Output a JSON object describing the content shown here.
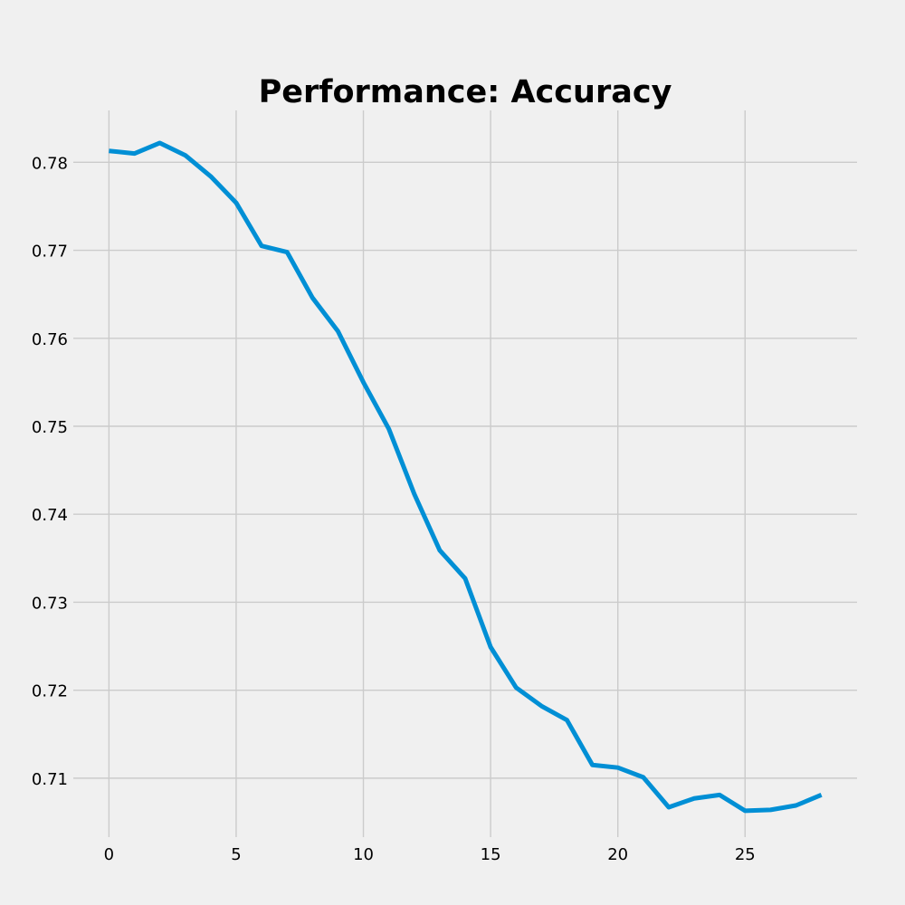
{
  "chart_data": {
    "type": "line",
    "title": "Performance: Accuracy",
    "xlabel": "",
    "ylabel": "",
    "xlim": [
      -1.4,
      29.4
    ],
    "ylim": [
      0.7033,
      0.7859
    ],
    "xticks": [
      0,
      5,
      10,
      15,
      20,
      25
    ],
    "yticks": [
      0.71,
      0.72,
      0.73,
      0.74,
      0.75,
      0.76,
      0.77,
      0.78
    ],
    "grid": true,
    "legend": "none",
    "colors": {
      "background": "#f0f0f0",
      "series": "#008fd5",
      "grid": "#cbcbcb"
    },
    "series": [
      {
        "x": [
          0,
          1,
          2,
          3,
          4,
          5,
          6,
          7,
          8,
          9,
          10,
          11,
          12,
          13,
          14,
          15,
          16,
          17,
          18,
          19,
          20,
          21,
          22,
          23,
          24,
          25,
          26,
          27,
          28
        ],
        "values": [
          0.7813,
          0.781,
          0.7822,
          0.7808,
          0.7784,
          0.7754,
          0.7705,
          0.7698,
          0.7646,
          0.7608,
          0.755,
          0.7497,
          0.7423,
          0.7359,
          0.7327,
          0.7249,
          0.7203,
          0.7182,
          0.7166,
          0.7115,
          0.7112,
          0.7101,
          0.7067,
          0.7077,
          0.7081,
          0.7063,
          0.7064,
          0.7069,
          0.7081
        ]
      }
    ]
  }
}
